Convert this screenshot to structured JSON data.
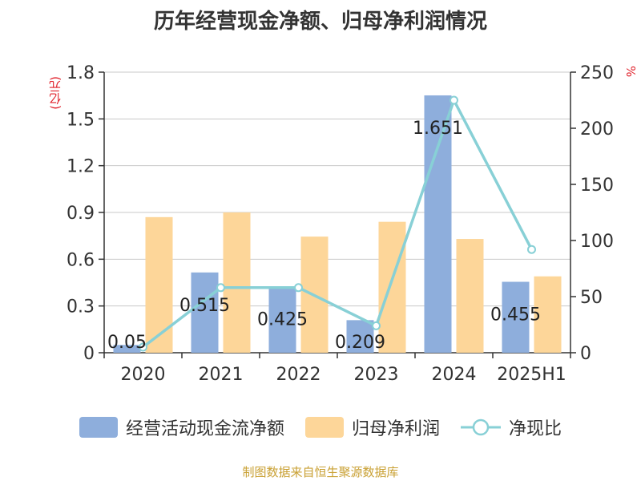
{
  "chart_data": {
    "type": "bar",
    "title": "历年经营现金净额、归母净利润情况",
    "categories": [
      "2020",
      "2021",
      "2022",
      "2023",
      "2024",
      "2025H1"
    ],
    "series": [
      {
        "name": "经营活动现金流净额",
        "axis": "left",
        "kind": "bar",
        "color": "#8eaedc",
        "values": [
          0.05,
          0.515,
          0.425,
          0.209,
          1.651,
          0.455
        ],
        "labels": [
          "0.05",
          "0.515",
          "0.425",
          "0.209",
          "1.651",
          "0.455"
        ]
      },
      {
        "name": "归母净利润",
        "axis": "left",
        "kind": "bar",
        "color": "#fdd699",
        "values": [
          0.87,
          0.9,
          0.745,
          0.84,
          0.73,
          0.49
        ]
      },
      {
        "name": "净现比",
        "axis": "right",
        "kind": "line",
        "color": "#88d0d6",
        "values": [
          5,
          58,
          58,
          24,
          225,
          92
        ]
      }
    ],
    "ylim_left": [
      0,
      1.8
    ],
    "yticks_left": [
      "0",
      "0.3",
      "0.6",
      "0.9",
      "1.2",
      "1.5",
      "1.8"
    ],
    "ylim_right": [
      0,
      250
    ],
    "yticks_right": [
      "0",
      "50",
      "100",
      "150",
      "200",
      "250"
    ],
    "ylabel_left": "(亿元)",
    "ylabel_right": "%",
    "grid": true,
    "legend": "bottom"
  },
  "source": "制图数据来自恒生聚源数据库"
}
